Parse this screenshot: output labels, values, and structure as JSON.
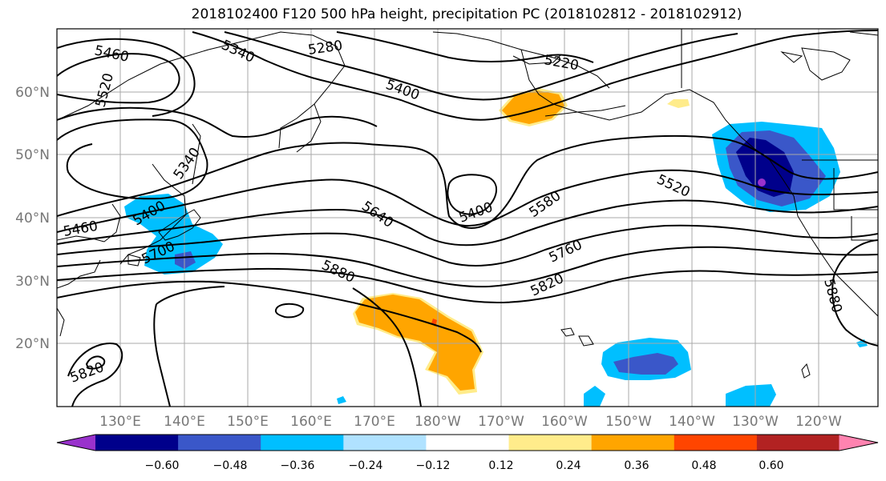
{
  "title": "2018102400 F120 500 hPa height, precipitation PC (2018102812 - 2018102912)",
  "lat_labels": [
    "60°N",
    "50°N",
    "40°N",
    "30°N",
    "20°N"
  ],
  "lon_labels": [
    "130°E",
    "140°E",
    "150°E",
    "160°E",
    "170°E",
    "180°W",
    "170°W",
    "160°W",
    "150°W",
    "140°W",
    "130°W",
    "120°W"
  ],
  "contour_labels": [
    "5460",
    "5340",
    "5280",
    "5220",
    "5520",
    "5400",
    "5340",
    "5400",
    "5460",
    "5700",
    "5640",
    "5400",
    "5580",
    "5520",
    "5760",
    "5880",
    "5820",
    "5820",
    "5880"
  ],
  "colorbar": {
    "ticks": [
      "−0.60",
      "−0.48",
      "−0.36",
      "−0.24",
      "−0.12",
      "0.12",
      "0.24",
      "0.36",
      "0.48",
      "0.60"
    ],
    "colors": [
      "#9932cc",
      "#00008b",
      "#3a57c9",
      "#00bfff",
      "#b0e2ff",
      "#ffffff",
      "#ffec8b",
      "#ffa500",
      "#ff4500",
      "#b22222",
      "#ff83b0"
    ]
  }
}
